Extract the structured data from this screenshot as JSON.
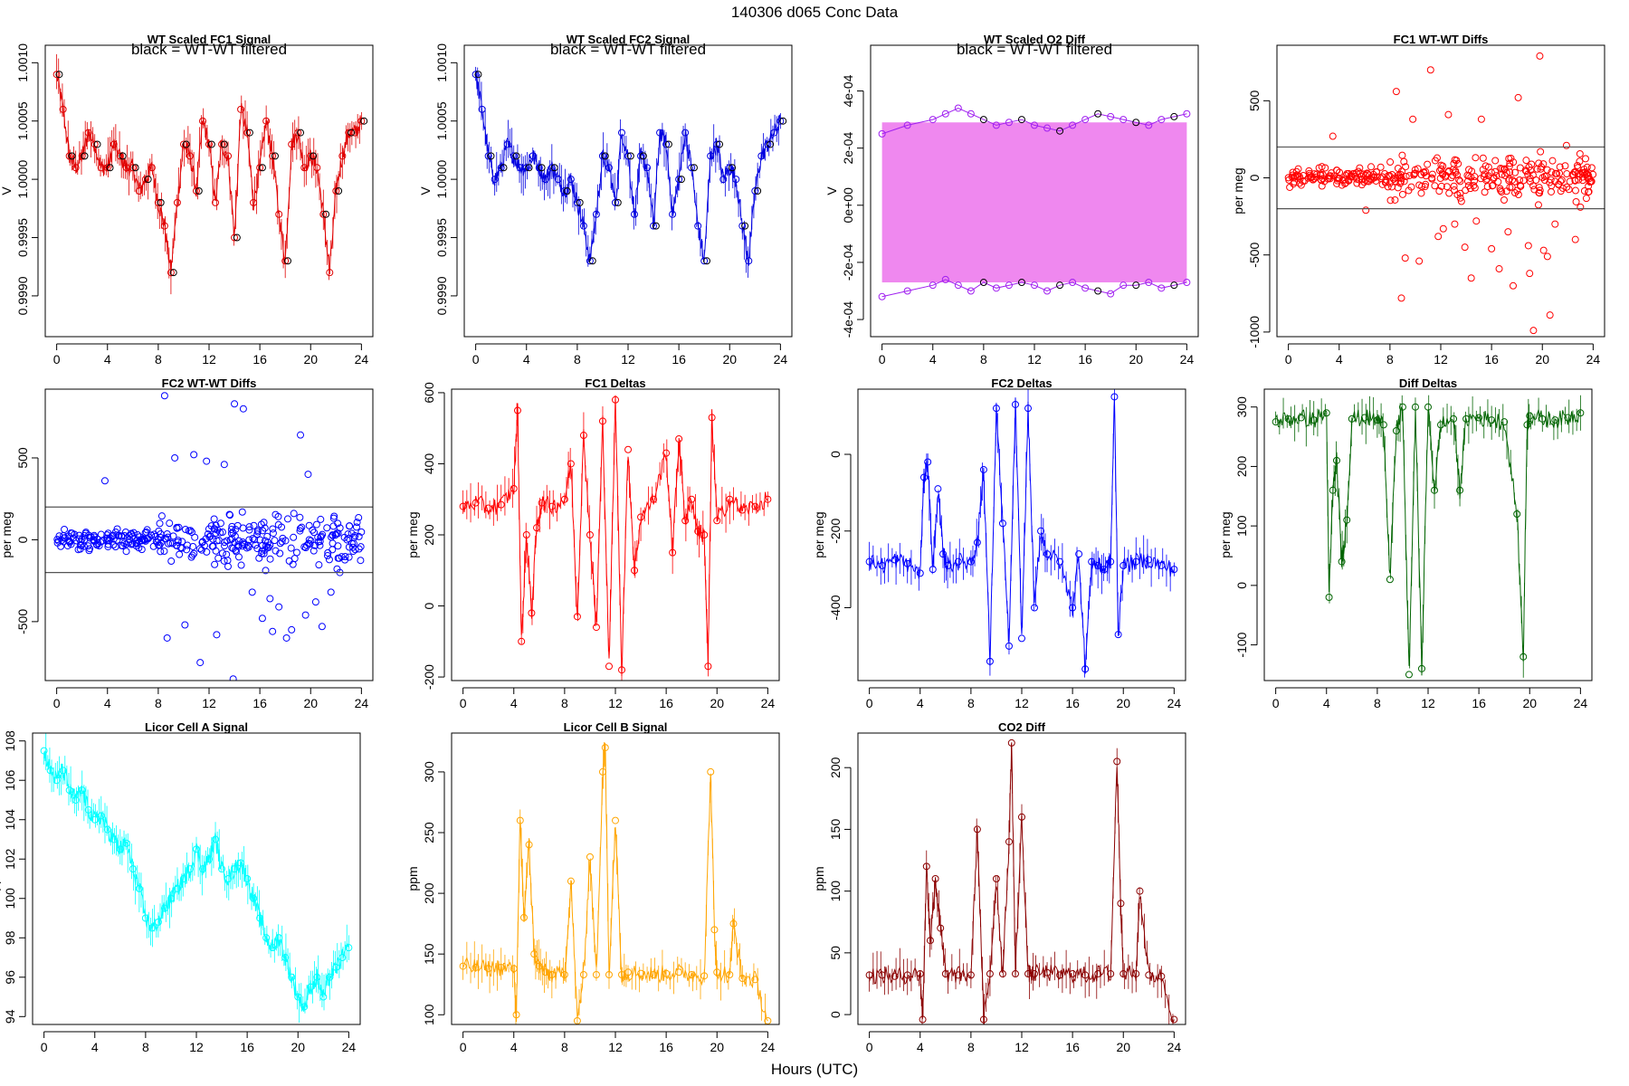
{
  "figure": {
    "title": "140306   d065   Conc Data",
    "xlabel_shared": "Hours (UTC)"
  },
  "chart_data": [
    {
      "id": "p1",
      "type": "line",
      "title": "WT Scaled FC1 Signal",
      "annotation": "black = WT-WT filtered",
      "ylabel": "V",
      "xlim": [
        -0.9,
        24.9
      ],
      "ylim": [
        0.99865,
        1.00115
      ],
      "xticks": [
        0,
        4,
        8,
        12,
        16,
        20,
        24
      ],
      "yticks": [
        0.999,
        0.9995,
        1.0,
        1.0005,
        1.001
      ],
      "ytick_labels": [
        "0.9990",
        "0.9995",
        "1.0000",
        "1.0005",
        "1.0010"
      ],
      "color": "#e00000",
      "overlay_color": "#000000",
      "x": [
        0,
        0.5,
        1,
        1.5,
        2,
        2.5,
        3,
        3.5,
        4,
        4.5,
        5,
        5.5,
        6,
        6.5,
        7,
        7.5,
        8,
        8.5,
        9,
        9.5,
        10,
        10.5,
        11,
        11.5,
        12,
        12.5,
        13,
        13.5,
        14,
        14.5,
        15,
        15.5,
        16,
        16.5,
        17,
        17.5,
        18,
        18.5,
        19,
        19.5,
        20,
        20.5,
        21,
        21.5,
        22,
        22.5,
        23,
        23.5,
        24
      ],
      "y": [
        1.0009,
        1.0006,
        1.0002,
        1.0001,
        1.0002,
        1.0004,
        1.0003,
        1.0001,
        1.0001,
        1.0003,
        1.0002,
        1.0001,
        1.0001,
        0.9999,
        1.0,
        1.0001,
        0.9998,
        0.9996,
        0.9992,
        0.9998,
        1.0003,
        1.0002,
        0.9999,
        1.0005,
        1.0003,
        0.9998,
        1.0003,
        1.0002,
        0.9995,
        1.0006,
        1.0004,
        0.9998,
        1.0001,
        1.0005,
        1.0002,
        0.9997,
        0.9993,
        1.0003,
        1.0004,
        1.0001,
        1.0002,
        1.0001,
        0.9997,
        0.9992,
        0.9999,
        1.0002,
        1.0004,
        1.0004,
        1.0005
      ]
    },
    {
      "id": "p2",
      "type": "line",
      "title": "WT Scaled FC2 Signal",
      "annotation": "black = WT-WT filtered",
      "ylabel": "V",
      "xlim": [
        -0.9,
        24.9
      ],
      "ylim": [
        0.99865,
        1.00115
      ],
      "xticks": [
        0,
        4,
        8,
        12,
        16,
        20,
        24
      ],
      "yticks": [
        0.999,
        0.9995,
        1.0,
        1.0005,
        1.001
      ],
      "ytick_labels": [
        "0.9990",
        "0.9995",
        "1.0000",
        "1.0005",
        "1.0010"
      ],
      "color": "#0000e0",
      "overlay_color": "#000000",
      "x": [
        0,
        0.5,
        1,
        1.5,
        2,
        2.5,
        3,
        3.5,
        4,
        4.5,
        5,
        5.5,
        6,
        6.5,
        7,
        7.5,
        8,
        8.5,
        9,
        9.5,
        10,
        10.5,
        11,
        11.5,
        12,
        12.5,
        13,
        13.5,
        14,
        14.5,
        15,
        15.5,
        16,
        16.5,
        17,
        17.5,
        18,
        18.5,
        19,
        19.5,
        20,
        20.5,
        21,
        21.5,
        22,
        22.5,
        23,
        23.5,
        24
      ],
      "y": [
        1.0009,
        1.0006,
        1.0002,
        1.0,
        1.0001,
        1.0003,
        1.0002,
        1.0001,
        1.0001,
        1.0002,
        1.0001,
        1.0,
        1.0001,
        1.0,
        0.9999,
        1.0,
        0.9998,
        0.9996,
        0.9993,
        0.9997,
        1.0002,
        1.0001,
        0.9998,
        1.0004,
        1.0002,
        0.9997,
        1.0002,
        1.0001,
        0.9996,
        1.0004,
        1.0003,
        0.9997,
        1.0,
        1.0004,
        1.0001,
        0.9996,
        0.9993,
        1.0002,
        1.0003,
        1.0,
        1.0001,
        1.0,
        0.9996,
        0.9993,
        0.9999,
        1.0002,
        1.0003,
        1.0004,
        1.0005
      ]
    },
    {
      "id": "p3",
      "type": "line",
      "title": "WT Scaled O2 Diff",
      "annotation": "black = WT-WT filtered",
      "ylabel": "V",
      "xlim": [
        -0.9,
        24.9
      ],
      "ylim": [
        -0.00046,
        0.00056
      ],
      "xticks": [
        0,
        4,
        8,
        12,
        16,
        20,
        24
      ],
      "yticks": [
        -0.0004,
        -0.0002,
        0,
        0.0002,
        0.0004
      ],
      "ytick_labels": [
        "-4e-04",
        "-2e-04",
        "0e+00",
        "2e-04",
        "4e-04"
      ],
      "color": "#ee82ee",
      "point_color": "#a020f0",
      "overlay_color": "#000000",
      "band": [
        -0.00027,
        0.00029
      ],
      "high_level_x": [
        0,
        2,
        4,
        5,
        6,
        7,
        8,
        9,
        10,
        11,
        12,
        13,
        14,
        15,
        16,
        17,
        18,
        19,
        20,
        21,
        22,
        23,
        24
      ],
      "high_level_y": [
        0.00025,
        0.00028,
        0.0003,
        0.00032,
        0.00034,
        0.00032,
        0.0003,
        0.00028,
        0.00029,
        0.0003,
        0.00028,
        0.00027,
        0.00026,
        0.00028,
        0.0003,
        0.00032,
        0.00031,
        0.0003,
        0.00029,
        0.00028,
        0.0003,
        0.00031,
        0.00032
      ],
      "low_level_x": [
        0,
        2,
        4,
        5,
        6,
        7,
        8,
        9,
        10,
        11,
        12,
        13,
        14,
        15,
        16,
        17,
        18,
        19,
        20,
        21,
        22,
        23,
        24
      ],
      "low_level_y": [
        -0.00032,
        -0.0003,
        -0.00028,
        -0.00026,
        -0.00028,
        -0.0003,
        -0.00027,
        -0.00029,
        -0.00028,
        -0.00027,
        -0.00028,
        -0.0003,
        -0.00028,
        -0.00027,
        -0.00029,
        -0.0003,
        -0.00031,
        -0.00028,
        -0.00028,
        -0.00027,
        -0.00029,
        -0.00028,
        -0.00027
      ]
    },
    {
      "id": "p4",
      "type": "scatter",
      "title": "FC1 WT-WT Diffs",
      "ylabel": "per meg",
      "xlim": [
        -0.9,
        24.9
      ],
      "ylim": [
        -1030,
        860
      ],
      "xticks": [
        0,
        4,
        8,
        12,
        16,
        20,
        24
      ],
      "yticks": [
        -1000,
        -500,
        0,
        500
      ],
      "ytick_labels": [
        "-1000",
        "-500",
        "0",
        "500"
      ],
      "hlines": [
        200,
        -200
      ],
      "color": "#ff0000",
      "x": [
        8.5,
        9.8,
        11.2,
        12.6,
        13.1,
        14.4,
        15.2,
        16.0,
        17.3,
        18.1,
        19.0,
        19.8,
        20.4,
        21.0,
        21.9,
        22.6,
        3.5,
        6.1,
        8.9,
        10.3,
        11.8,
        13.9,
        16.6,
        17.7,
        19.3,
        20.6,
        9.2,
        12.2,
        14.8,
        18.9,
        20.1,
        23.0
      ],
      "y": [
        560,
        380,
        700,
        410,
        -300,
        -650,
        380,
        -460,
        -350,
        520,
        -620,
        790,
        -510,
        -300,
        210,
        -400,
        270,
        -210,
        -780,
        -540,
        -380,
        -450,
        -590,
        -700,
        -990,
        -890,
        -520,
        -330,
        -280,
        -440,
        -470,
        -190
      ]
    },
    {
      "id": "p5",
      "type": "scatter",
      "title": "FC2 WT-WT Diffs",
      "ylabel": "per meg",
      "xlim": [
        -0.9,
        24.9
      ],
      "ylim": [
        -860,
        920
      ],
      "xticks": [
        0,
        4,
        8,
        12,
        16,
        20,
        24
      ],
      "yticks": [
        -500,
        0,
        500
      ],
      "ytick_labels": [
        "-500",
        "0",
        "500"
      ],
      "hlines": [
        200,
        -200
      ],
      "color": "#0000ff",
      "x": [
        8.5,
        9.3,
        10.8,
        11.8,
        13.2,
        14.0,
        14.7,
        16.2,
        17.0,
        18.1,
        19.2,
        19.8,
        20.9,
        21.6,
        3.8,
        8.7,
        10.1,
        11.3,
        12.6,
        13.9,
        15.4,
        16.8,
        17.5,
        18.5,
        19.6,
        20.4,
        22.3
      ],
      "y": [
        880,
        500,
        520,
        480,
        460,
        830,
        800,
        -480,
        -560,
        -600,
        640,
        400,
        -530,
        -320,
        360,
        -600,
        -520,
        -750,
        -580,
        -850,
        -320,
        -360,
        -410,
        -550,
        -460,
        -380,
        -200
      ]
    },
    {
      "id": "p6",
      "type": "line",
      "title": "FC1 Deltas",
      "ylabel": "per meg",
      "xlim": [
        -0.9,
        24.9
      ],
      "ylim": [
        -210,
        610
      ],
      "xticks": [
        0,
        4,
        8,
        12,
        16,
        20,
        24
      ],
      "yticks": [
        -200,
        0,
        200,
        400,
        600
      ],
      "ytick_labels": [
        "-200",
        "0",
        "200",
        "400",
        "600"
      ],
      "color": "#ff0000",
      "x": [
        0,
        1,
        2,
        3,
        4,
        4.3,
        4.6,
        5.0,
        5.4,
        5.8,
        6.2,
        7,
        8,
        8.5,
        9,
        9.5,
        10,
        10.5,
        11,
        11.5,
        12,
        12.5,
        13,
        13.5,
        14,
        15,
        16,
        16.5,
        17,
        17.5,
        18,
        18.5,
        19,
        19.3,
        19.6,
        20,
        21,
        22,
        23,
        24
      ],
      "y": [
        280,
        290,
        275,
        285,
        330,
        550,
        -100,
        200,
        -20,
        220,
        290,
        280,
        300,
        400,
        -30,
        480,
        200,
        -60,
        520,
        -170,
        580,
        -180,
        440,
        100,
        250,
        300,
        430,
        150,
        470,
        240,
        300,
        210,
        200,
        -170,
        530,
        240,
        300,
        270,
        280,
        300
      ]
    },
    {
      "id": "p7",
      "type": "line",
      "title": "FC2 Deltas",
      "ylabel": "per meg",
      "xlim": [
        -0.9,
        24.9
      ],
      "ylim": [
        -590,
        170
      ],
      "xticks": [
        0,
        4,
        8,
        12,
        16,
        20,
        24
      ],
      "yticks": [
        -400,
        -200,
        0
      ],
      "ytick_labels": [
        "-400",
        "-200",
        "0"
      ],
      "color": "#0000ff",
      "x": [
        0,
        1,
        2,
        3,
        4,
        4.3,
        4.6,
        5.0,
        5.4,
        5.8,
        6.2,
        7,
        8,
        8.5,
        9,
        9.5,
        10,
        10.5,
        11,
        11.5,
        12,
        12.5,
        13,
        13.5,
        14,
        15,
        16,
        16.5,
        17,
        17.5,
        18,
        18.5,
        19,
        19.3,
        19.6,
        20,
        21,
        22,
        23,
        24
      ],
      "y": [
        -280,
        -290,
        -275,
        -285,
        -310,
        -60,
        -20,
        -300,
        -90,
        -260,
        -290,
        -280,
        -280,
        -230,
        -40,
        -540,
        120,
        -180,
        -500,
        130,
        -480,
        120,
        -400,
        -200,
        -260,
        -280,
        -400,
        -260,
        -560,
        -280,
        -290,
        -300,
        -280,
        150,
        -470,
        -290,
        -280,
        -275,
        -290,
        -300
      ]
    },
    {
      "id": "p8",
      "type": "line",
      "title": "Diff Deltas",
      "ylabel": "per meg",
      "xlim": [
        -0.9,
        24.9
      ],
      "ylim": [
        -160,
        330
      ],
      "xticks": [
        0,
        4,
        8,
        12,
        16,
        20,
        24
      ],
      "yticks": [
        -100,
        0,
        100,
        200,
        300
      ],
      "ytick_labels": [
        "-100",
        "0",
        "100",
        "200",
        "300"
      ],
      "color": "#006400",
      "x": [
        0,
        1,
        2,
        3,
        4,
        4.2,
        4.5,
        4.8,
        5.2,
        5.6,
        6,
        7,
        8,
        8.5,
        9,
        9.5,
        10,
        10.5,
        11,
        11.5,
        12,
        12.5,
        13,
        14,
        14.5,
        15,
        16,
        17,
        18,
        19,
        19.5,
        19.8,
        20,
        21,
        22,
        23,
        24
      ],
      "y": [
        275,
        280,
        282,
        278,
        290,
        -20,
        160,
        210,
        40,
        110,
        280,
        282,
        278,
        270,
        10,
        260,
        300,
        -150,
        300,
        -140,
        300,
        160,
        270,
        280,
        160,
        280,
        282,
        278,
        275,
        120,
        -120,
        270,
        285,
        280,
        278,
        282,
        290
      ]
    },
    {
      "id": "p9",
      "type": "line",
      "title": "Licor Cell A Signal",
      "ylabel": "ppm",
      "xlim": [
        -0.9,
        24.9
      ],
      "ylim": [
        93.6,
        108.4
      ],
      "xticks": [
        0,
        4,
        8,
        12,
        16,
        20,
        24
      ],
      "yticks": [
        94,
        96,
        98,
        100,
        102,
        104,
        106,
        108
      ],
      "ytick_labels": [
        "94",
        "96",
        "98",
        "100",
        "102",
        "104",
        "106",
        "108"
      ],
      "color": "#00ffff",
      "x": [
        0,
        0.5,
        1,
        1.5,
        2,
        2.5,
        3,
        3.5,
        4,
        4.5,
        5,
        5.5,
        6,
        6.5,
        7,
        7.5,
        8,
        8.5,
        9,
        9.5,
        10,
        10.5,
        11,
        11.5,
        12,
        12.5,
        13,
        13.5,
        14,
        14.5,
        15,
        15.5,
        16,
        16.5,
        17,
        17.5,
        18,
        18.5,
        19,
        19.5,
        20,
        20.5,
        21,
        21.5,
        22,
        22.5,
        23,
        23.5,
        24
      ],
      "y": [
        107.5,
        106.5,
        106,
        106.5,
        105.5,
        105,
        105.5,
        104.5,
        104,
        104.2,
        103.5,
        103,
        102.5,
        102.8,
        101.5,
        100.5,
        99,
        98.5,
        98.8,
        99.5,
        100,
        100.5,
        101,
        101.5,
        102.5,
        101.5,
        102,
        103,
        101.5,
        101,
        101.5,
        101.8,
        101,
        100,
        99,
        98,
        97.5,
        98,
        97,
        96,
        95,
        94.5,
        95.5,
        96,
        95,
        96,
        96.5,
        97,
        97.5
      ]
    },
    {
      "id": "p10",
      "type": "line",
      "title": "Licor Cell B Signal",
      "ylabel": "ppm",
      "xlim": [
        -0.9,
        24.9
      ],
      "ylim": [
        92,
        332
      ],
      "xticks": [
        0,
        4,
        8,
        12,
        16,
        20,
        24
      ],
      "yticks": [
        100,
        150,
        200,
        250,
        300
      ],
      "ytick_labels": [
        "100",
        "150",
        "200",
        "250",
        "300"
      ],
      "color": "#ffa500",
      "x": [
        0,
        1,
        2,
        3,
        4,
        4.2,
        4.5,
        4.8,
        5.2,
        5.6,
        6,
        6.5,
        7,
        8,
        8.5,
        9,
        9.5,
        10,
        10.5,
        11,
        11.2,
        11.5,
        12,
        12.5,
        13,
        14,
        15,
        16,
        17,
        18,
        19,
        19.5,
        19.8,
        20,
        21,
        21.3,
        22,
        23,
        24
      ],
      "y": [
        140,
        139,
        138,
        139,
        138,
        100,
        260,
        180,
        240,
        150,
        140,
        135,
        133,
        133,
        210,
        95,
        133,
        230,
        133,
        300,
        320,
        133,
        260,
        133,
        135,
        134,
        133,
        134,
        135,
        133,
        132,
        300,
        170,
        135,
        133,
        175,
        130,
        129,
        95
      ]
    },
    {
      "id": "p11",
      "type": "line",
      "title": "CO2 Diff",
      "ylabel": "ppm",
      "xlim": [
        -0.9,
        24.9
      ],
      "ylim": [
        -8,
        228
      ],
      "xticks": [
        0,
        4,
        8,
        12,
        16,
        20,
        24
      ],
      "yticks": [
        0,
        50,
        100,
        150,
        200
      ],
      "ytick_labels": [
        "0",
        "50",
        "100",
        "150",
        "200"
      ],
      "color": "#8b0000",
      "x": [
        0,
        1,
        2,
        3,
        4,
        4.2,
        4.5,
        4.8,
        5.2,
        5.6,
        6,
        7,
        8,
        8.5,
        9,
        9.5,
        10,
        10.5,
        11,
        11.2,
        11.5,
        12,
        12.5,
        13,
        14,
        15,
        16,
        17,
        18,
        19,
        19.5,
        19.8,
        20,
        21,
        21.3,
        22,
        23,
        24
      ],
      "y": [
        32,
        32,
        31,
        32,
        33,
        -4,
        120,
        60,
        110,
        70,
        33,
        32,
        32,
        150,
        -4,
        33,
        110,
        33,
        140,
        220,
        33,
        160,
        33,
        33,
        34,
        32,
        33,
        32,
        33,
        33,
        205,
        90,
        33,
        33,
        100,
        32,
        31,
        -4
      ]
    }
  ]
}
